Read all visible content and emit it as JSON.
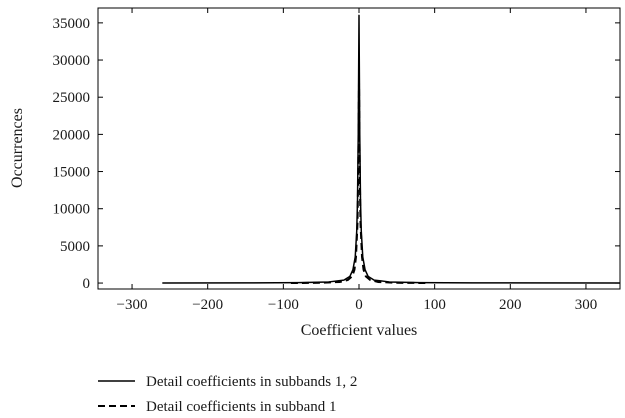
{
  "chart_data": {
    "type": "line",
    "xlabel": "Coefficient values",
    "ylabel": "Occurrences",
    "xlim": [
      -345,
      345
    ],
    "ylim": [
      -800,
      37000
    ],
    "x_ticks": [
      -300,
      -200,
      -100,
      0,
      100,
      200,
      300
    ],
    "y_ticks": [
      0,
      5000,
      10000,
      15000,
      20000,
      25000,
      30000,
      35000
    ],
    "x_tick_labels": [
      "−300",
      "−200",
      "−100",
      "0",
      "100",
      "200",
      "300"
    ],
    "y_tick_labels": [
      "0",
      "5000",
      "10000",
      "15000",
      "20000",
      "25000",
      "30000",
      "35000"
    ],
    "grid": false,
    "legend_position": "below-left",
    "series": [
      {
        "name": "Detail coefficients in subbands 1, 2",
        "style": "solid",
        "color": "#000000",
        "x": [
          -260,
          -150,
          -80,
          -40,
          -20,
          -12,
          -8,
          -5,
          -3,
          -2,
          -1,
          0,
          1,
          2,
          3,
          5,
          8,
          12,
          20,
          40,
          80,
          150,
          345
        ],
        "y": [
          0,
          20,
          60,
          150,
          400,
          900,
          1800,
          3500,
          7000,
          11000,
          20000,
          36000,
          20000,
          11000,
          7000,
          3500,
          1800,
          900,
          400,
          150,
          60,
          20,
          0
        ]
      },
      {
        "name": "Detail coefficients in subband 1",
        "style": "dashed",
        "color": "#000000",
        "x": [
          -90,
          -50,
          -25,
          -15,
          -9,
          -6,
          -4,
          -2,
          -1,
          0,
          1,
          2,
          4,
          6,
          9,
          15,
          25,
          50,
          90
        ],
        "y": [
          0,
          40,
          150,
          400,
          900,
          1800,
          3500,
          8000,
          15000,
          27000,
          15000,
          8000,
          3500,
          1800,
          900,
          400,
          150,
          40,
          0
        ]
      }
    ]
  }
}
